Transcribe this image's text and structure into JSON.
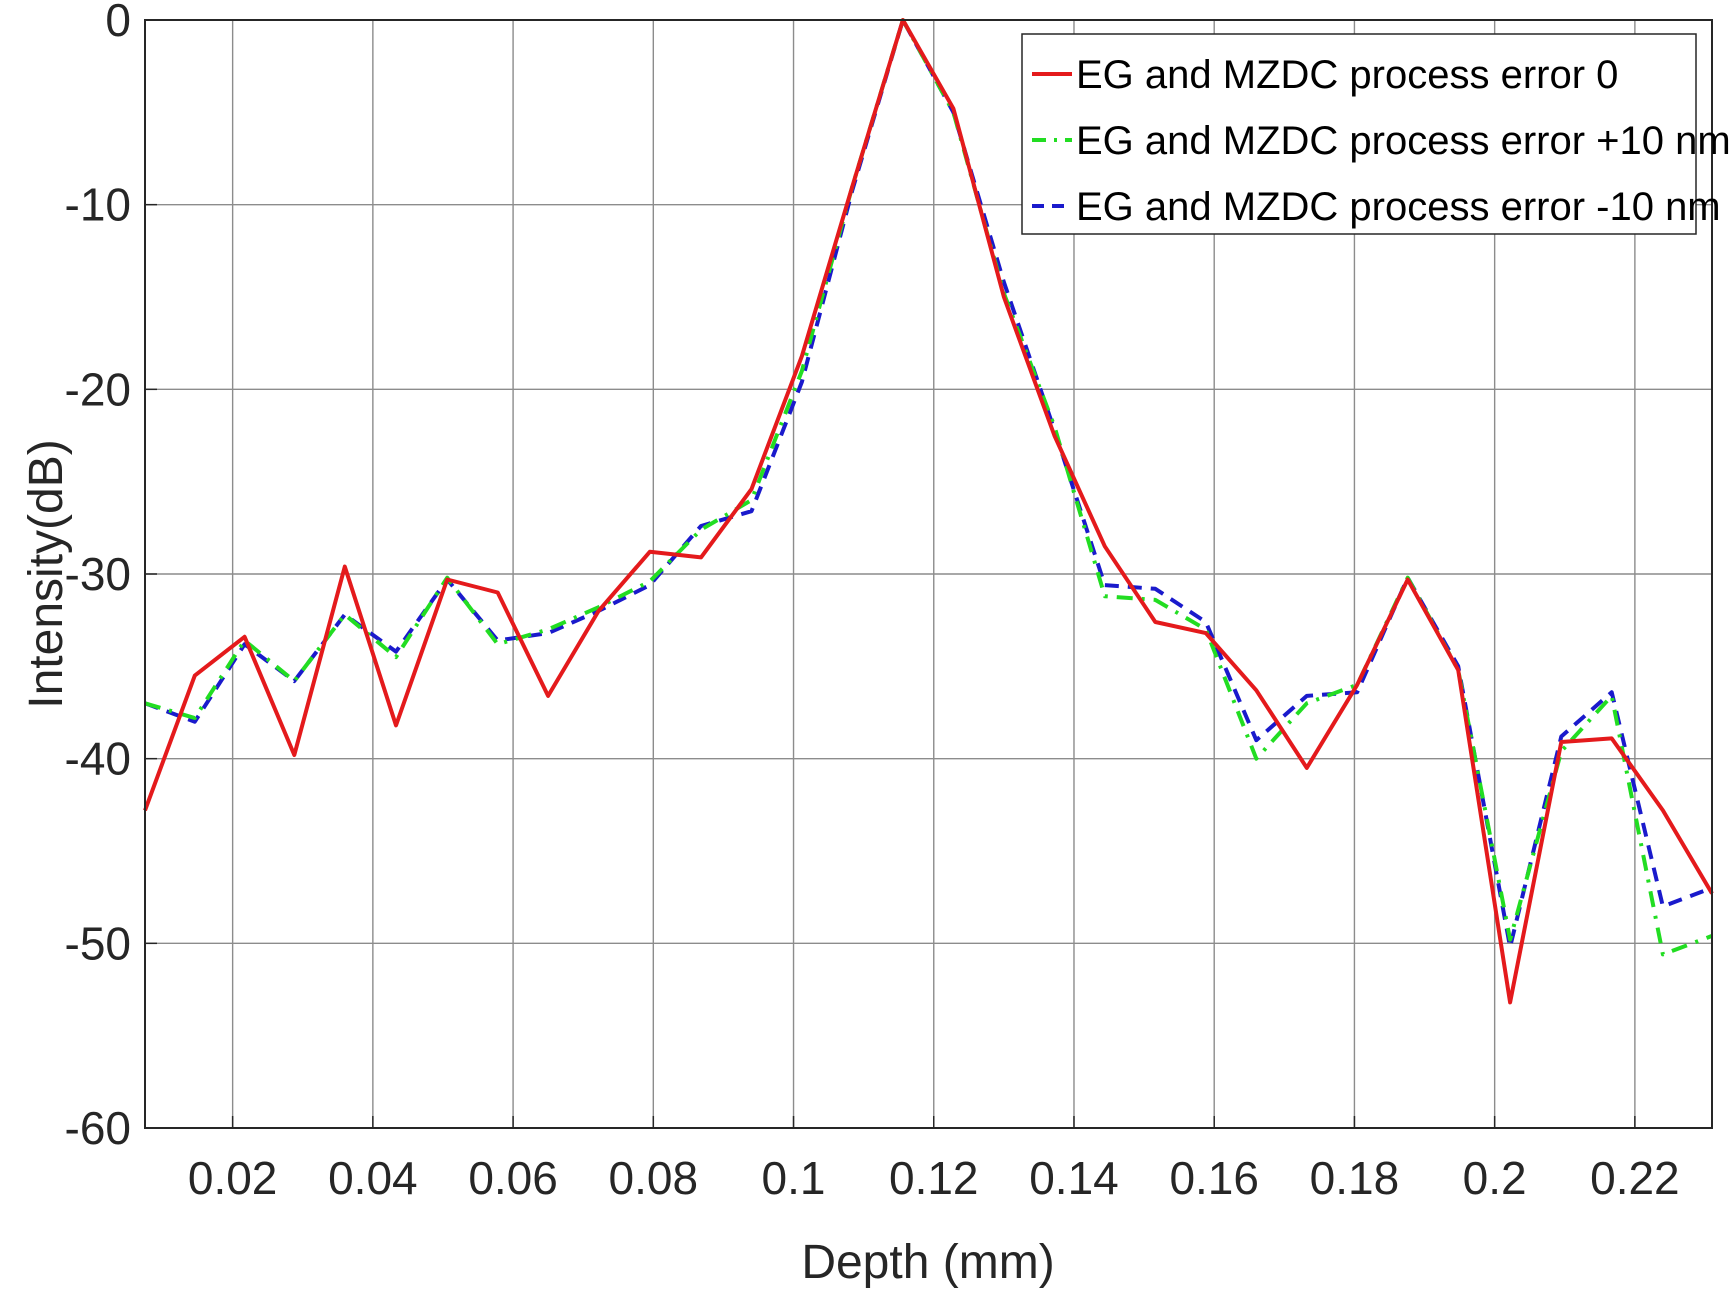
{
  "chart_data": {
    "type": "line",
    "title": "",
    "xlabel": "Depth (mm)",
    "ylabel": "Intensity(dB)",
    "xlim": [
      0.0075,
      0.231
    ],
    "ylim": [
      -60,
      0
    ],
    "xticks": [
      0.02,
      0.04,
      0.06,
      0.08,
      0.1,
      0.12,
      0.14,
      0.16,
      0.18,
      0.2,
      0.22
    ],
    "xtick_labels": [
      "0.02",
      "0.04",
      "0.06",
      "0.08",
      "0.1",
      "0.12",
      "0.14",
      "0.16",
      "0.18",
      "0.2",
      "0.22"
    ],
    "yticks": [
      0,
      -10,
      -20,
      -30,
      -40,
      -50,
      -60
    ],
    "ytick_labels": [
      "0",
      "-10",
      "-20",
      "-30",
      "-40",
      "-50",
      "-60"
    ],
    "grid": true,
    "legend_position": "top-right",
    "series": [
      {
        "name": "EG and MZDC process error 0",
        "color": "#e41a1c",
        "style": "solid",
        "x": [
          0.0075,
          0.0146,
          0.0217,
          0.0288,
          0.036,
          0.0433,
          0.0506,
          0.0578,
          0.065,
          0.0722,
          0.0795,
          0.0868,
          0.094,
          0.1012,
          0.1084,
          0.1156,
          0.1228,
          0.13,
          0.1372,
          0.1444,
          0.1516,
          0.1588,
          0.166,
          0.1732,
          0.1804,
          0.1876,
          0.1948,
          0.2022,
          0.2095,
          0.2167,
          0.224,
          0.231
        ],
        "y": [
          -42.8,
          -35.5,
          -33.4,
          -39.8,
          -29.6,
          -38.2,
          -30.3,
          -31.0,
          -36.6,
          -32.0,
          -28.8,
          -29.1,
          -25.4,
          -18.2,
          -9.0,
          0.0,
          -4.8,
          -15.0,
          -22.5,
          -28.5,
          -32.6,
          -33.2,
          -36.3,
          -40.5,
          -36.0,
          -30.3,
          -35.2,
          -53.2,
          -39.1,
          -38.9,
          -42.8,
          -47.3
        ]
      },
      {
        "name": "EG and MZDC process error +10 nm",
        "color": "#22dd22",
        "style": "dash-dot",
        "x": [
          0.0075,
          0.0146,
          0.0217,
          0.0288,
          0.036,
          0.0433,
          0.0506,
          0.0578,
          0.065,
          0.0722,
          0.0795,
          0.0868,
          0.094,
          0.1012,
          0.1084,
          0.1156,
          0.1228,
          0.13,
          0.1372,
          0.1444,
          0.1516,
          0.1588,
          0.166,
          0.1732,
          0.1804,
          0.1876,
          0.1948,
          0.2022,
          0.2095,
          0.2167,
          0.224,
          0.231
        ],
        "y": [
          -37.0,
          -37.8,
          -33.6,
          -35.8,
          -32.2,
          -34.5,
          -30.2,
          -33.8,
          -33.0,
          -31.8,
          -30.4,
          -27.6,
          -26.0,
          -19.0,
          -9.0,
          0.0,
          -5.0,
          -14.8,
          -22.0,
          -31.2,
          -31.4,
          -33.0,
          -40.0,
          -37.0,
          -36.0,
          -30.2,
          -35.2,
          -49.8,
          -39.6,
          -36.6,
          -50.6,
          -49.6
        ]
      },
      {
        "name": "EG and MZDC process error -10 nm",
        "color": "#1a1acc",
        "style": "dashed",
        "x": [
          0.0075,
          0.0146,
          0.0217,
          0.0288,
          0.036,
          0.0433,
          0.0506,
          0.0578,
          0.065,
          0.0722,
          0.0795,
          0.0868,
          0.094,
          0.1012,
          0.1084,
          0.1156,
          0.1228,
          0.13,
          0.1372,
          0.1444,
          0.1516,
          0.1588,
          0.166,
          0.1732,
          0.1804,
          0.1876,
          0.1948,
          0.2022,
          0.2095,
          0.2167,
          0.224,
          0.231
        ],
        "y": [
          -37.0,
          -38.0,
          -33.8,
          -35.8,
          -32.2,
          -34.2,
          -30.3,
          -33.6,
          -33.2,
          -32.0,
          -30.6,
          -27.4,
          -26.6,
          -19.6,
          -9.2,
          0.0,
          -5.0,
          -14.2,
          -22.2,
          -30.6,
          -30.8,
          -32.6,
          -39.0,
          -36.6,
          -36.4,
          -30.2,
          -35.0,
          -50.2,
          -38.8,
          -36.4,
          -48.0,
          -47.0
        ]
      }
    ]
  }
}
